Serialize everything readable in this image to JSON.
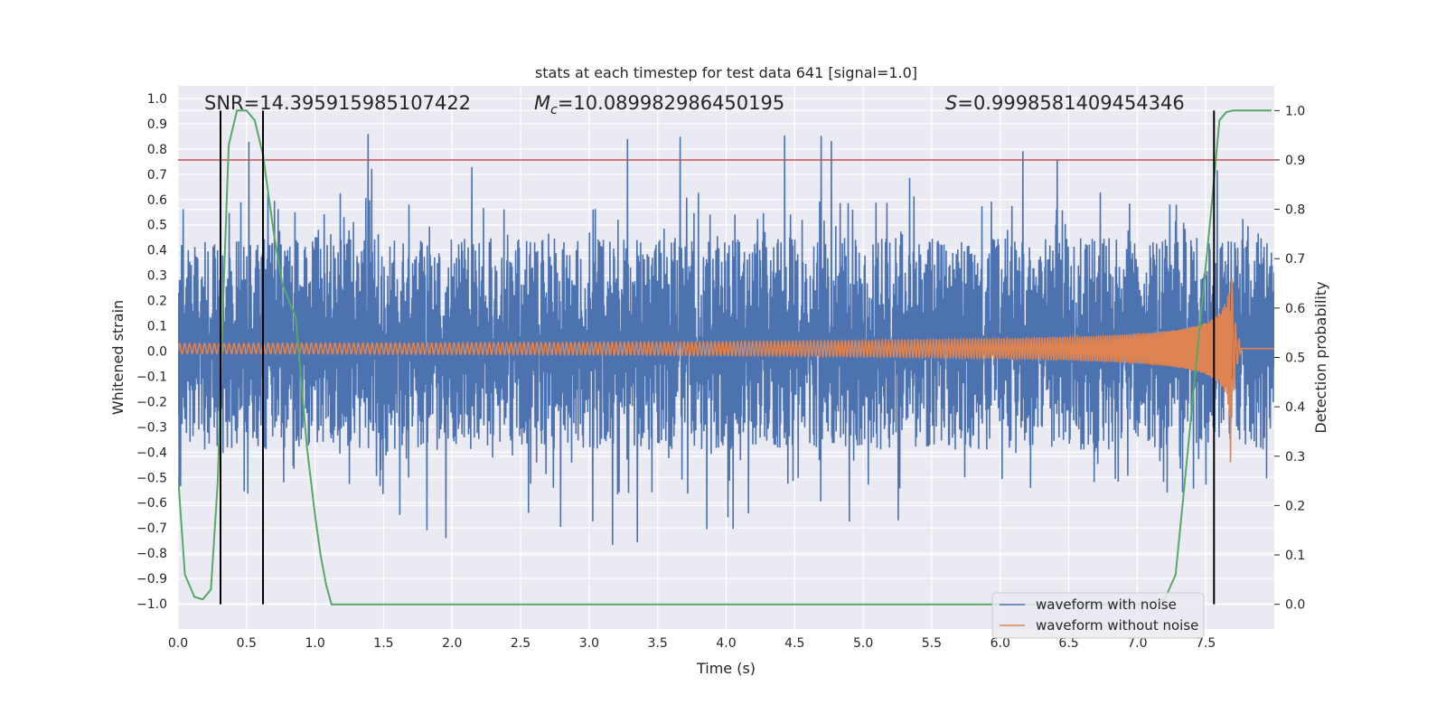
{
  "chart_data": {
    "type": "line",
    "title": "stats at each timestep for test data 641 [signal=1.0]",
    "xlabel": "Time (s)",
    "ylabel": "Whitened strain",
    "ylabel_right": "Detection probability",
    "xlim": [
      0.0,
      8.0
    ],
    "ylim": [
      -1.1,
      1.05
    ],
    "ylim_right": [
      -0.05,
      1.05
    ],
    "grid": true,
    "legend_placement": "lower-right",
    "x_ticks": [
      "0.0",
      "0.5",
      "1.0",
      "1.5",
      "2.0",
      "2.5",
      "3.0",
      "3.5",
      "4.0",
      "4.5",
      "5.0",
      "5.5",
      "6.0",
      "6.5",
      "7.0",
      "7.5"
    ],
    "y_ticks": [
      "1.0",
      "0.9",
      "0.8",
      "0.7",
      "0.6",
      "0.5",
      "0.4",
      "0.3",
      "0.2",
      "0.1",
      "0.0",
      "−0.1",
      "−0.2",
      "−0.3",
      "−0.4",
      "−0.5",
      "−0.6",
      "−0.7",
      "−0.8",
      "−0.9",
      "−1.0"
    ],
    "y_ticks_right": [
      "1.0",
      "0.9",
      "0.8",
      "0.7",
      "0.6",
      "0.5",
      "0.4",
      "0.3",
      "0.2",
      "0.1",
      "0.0"
    ],
    "annotations": {
      "snr": "SNR=14.395915985107422",
      "mc_symbol": "M",
      "mc_sub": "c",
      "mc_value": "=10.089982986450195",
      "s_symbol": "S",
      "s_value": "=0.9998581409454346"
    },
    "threshold": 0.9,
    "vertical_lines_x": [
      0.31,
      0.62,
      7.56
    ],
    "series": [
      {
        "name": "waveform with noise",
        "color": "#4c72b0",
        "envelope_amplitude": 0.42,
        "peaks_max": 0.97,
        "peaks_min": -1.0
      },
      {
        "name": "waveform without noise",
        "color": "#dd8452",
        "initial_amplitude": 0.02,
        "peak_time": 7.68,
        "peak_amplitude": 0.42
      },
      {
        "name": "Detection probability",
        "color": "#55a868",
        "x": [
          0.0,
          0.05,
          0.12,
          0.18,
          0.24,
          0.29,
          0.33,
          0.37,
          0.43,
          0.5,
          0.56,
          0.62,
          0.7,
          0.76,
          0.86,
          0.94,
          1.0,
          1.04,
          1.08,
          1.12,
          1.2,
          1.5,
          2.0,
          3.0,
          4.0,
          5.0,
          6.0,
          7.0,
          7.2,
          7.28,
          7.33,
          7.4,
          7.47,
          7.54,
          7.6,
          7.65,
          7.7,
          7.78,
          7.98
        ],
        "y": [
          0.26,
          0.06,
          0.015,
          0.01,
          0.03,
          0.25,
          0.62,
          0.93,
          1.0,
          1.0,
          0.98,
          0.91,
          0.75,
          0.65,
          0.58,
          0.32,
          0.18,
          0.1,
          0.04,
          0.0,
          0.0,
          0.0,
          0.0,
          0.0,
          0.0,
          0.0,
          0.0,
          0.0,
          0.01,
          0.06,
          0.2,
          0.4,
          0.6,
          0.8,
          0.98,
          0.997,
          1.0,
          1.0,
          1.0
        ]
      }
    ]
  }
}
